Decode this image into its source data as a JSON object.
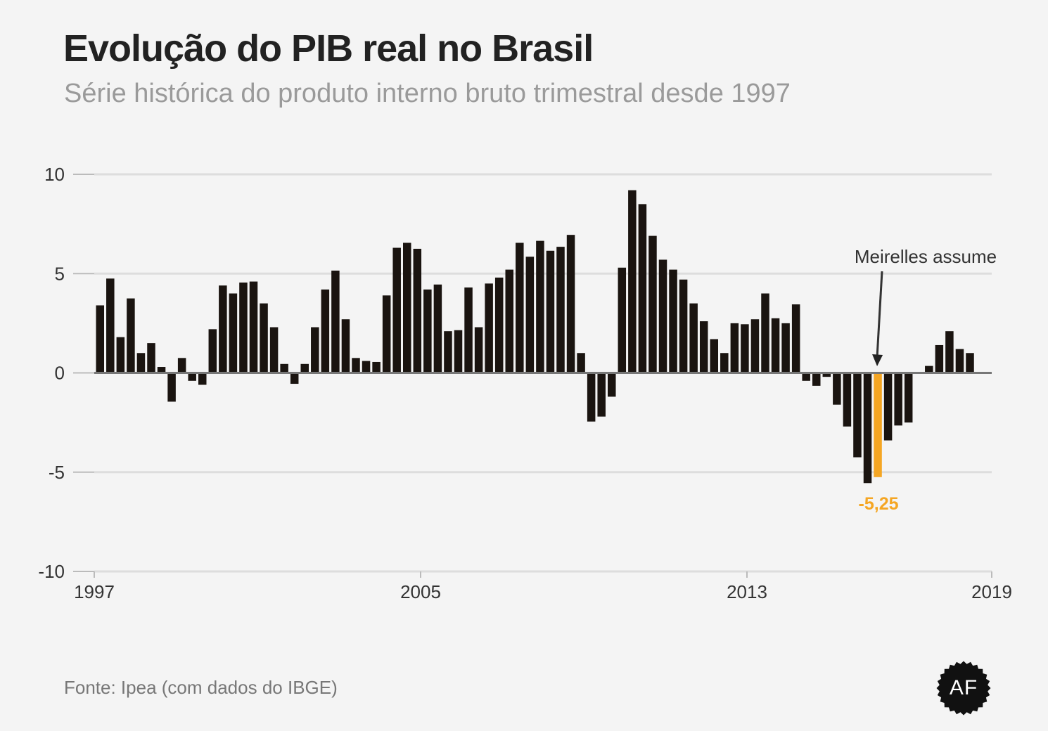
{
  "header": {
    "title": "Evolução do PIB real no Brasil",
    "subtitle": "Série histórica do produto interno bruto trimestral desde 1997"
  },
  "footer": {
    "source": "Fonte: Ipea (com dados do IBGE)",
    "logo_text": "AF"
  },
  "colors": {
    "bar": "#1a1410",
    "highlight": "#f5a623",
    "grid": "#dddddd",
    "zero_line": "#777777",
    "axis_text": "#333333"
  },
  "chart_data": {
    "type": "bar",
    "ylim": [
      -10,
      10
    ],
    "yticks": [
      10,
      5,
      0,
      -5,
      -10
    ],
    "xticks": [
      "1997",
      "2005",
      "2013",
      "2019"
    ],
    "grid": true,
    "values": [
      3.4,
      4.75,
      1.8,
      3.75,
      1.0,
      1.5,
      0.3,
      -1.45,
      0.75,
      -0.4,
      -0.6,
      2.2,
      4.4,
      4.0,
      4.55,
      4.6,
      3.5,
      2.3,
      0.45,
      -0.55,
      0.45,
      2.3,
      4.2,
      5.15,
      2.7,
      0.75,
      0.6,
      0.55,
      3.9,
      6.3,
      6.55,
      6.25,
      4.2,
      4.45,
      2.1,
      2.15,
      4.3,
      2.3,
      4.5,
      4.8,
      5.2,
      6.55,
      5.85,
      6.65,
      6.15,
      6.35,
      6.95,
      1.0,
      -2.45,
      -2.2,
      -1.2,
      5.3,
      9.2,
      8.5,
      6.9,
      5.7,
      5.2,
      4.7,
      3.5,
      2.6,
      1.7,
      1.0,
      2.5,
      2.45,
      2.7,
      4.0,
      2.75,
      2.5,
      3.45,
      -0.4,
      -0.65,
      -0.2,
      -1.6,
      -2.7,
      -4.25,
      -5.55,
      -5.25,
      -3.4,
      -2.65,
      -2.5,
      0.0,
      0.35,
      1.4,
      2.1,
      1.2,
      1.0
    ],
    "highlight_index": 76,
    "annotation": {
      "label": "Meirelles assume",
      "value_label": "-5,25"
    }
  }
}
